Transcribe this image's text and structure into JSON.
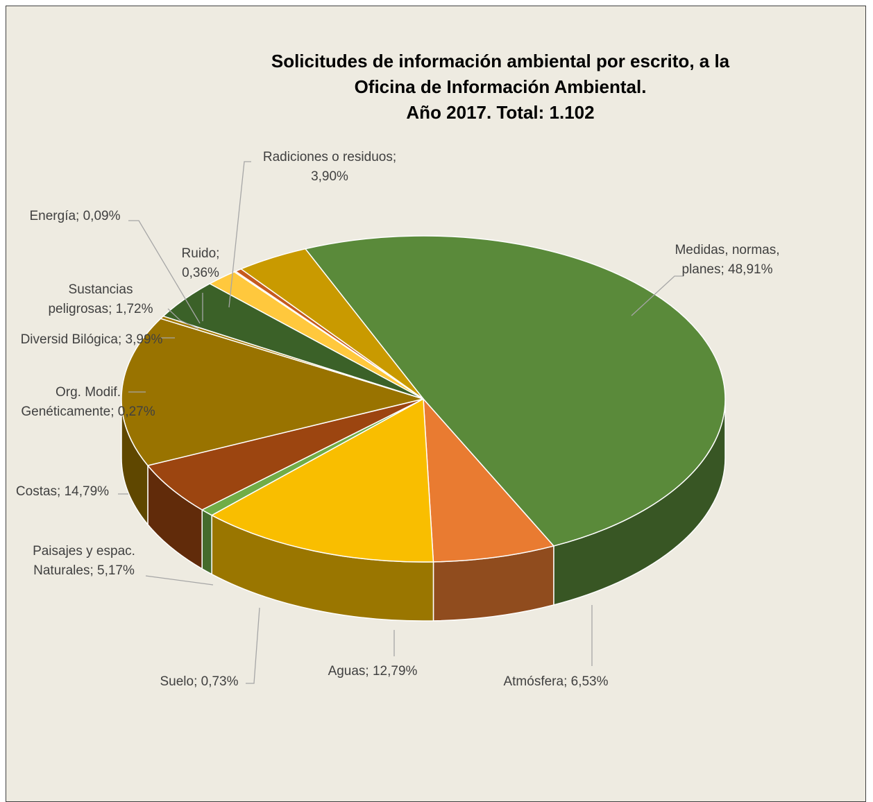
{
  "chart_data": {
    "type": "pie",
    "title_lines": [
      "Solicitudes de  información ambiental por escrito,  a la",
      "Oficina de Información Ambiental.",
      "Año 2017. Total: 1.102"
    ],
    "data_labels": "category; percent",
    "slices": [
      {
        "name": "Medidas, normas, planes",
        "value": 48.91,
        "label_lines": [
          "Medidas, normas,",
          "planes; 48,91%"
        ],
        "color": "#5a8a3a"
      },
      {
        "name": "Atmósfera",
        "value": 6.53,
        "label_lines": [
          "Atmósfera; 6,53%"
        ],
        "color": "#e97b31"
      },
      {
        "name": "Aguas",
        "value": 12.79,
        "label_lines": [
          "Aguas; 12,79%"
        ],
        "color": "#f9be00"
      },
      {
        "name": "Suelo",
        "value": 0.73,
        "label_lines": [
          "Suelo; 0,73%"
        ],
        "color": "#70ad47"
      },
      {
        "name": "Paisajes y espac. Naturales",
        "value": 5.17,
        "label_lines": [
          "Paisajes y espac.",
          "Naturales; 5,17%"
        ],
        "color": "#9c4510"
      },
      {
        "name": "Costas",
        "value": 14.79,
        "label_lines": [
          "Costas; 14,79%"
        ],
        "color": "#997300"
      },
      {
        "name": "Org. Modif. Genéticamente",
        "value": 0.27,
        "label_lines": [
          "Org. Modif.",
          "Genéticamente; 0,27%"
        ],
        "color": "#a27900"
      },
      {
        "name": "Diversid Bilógica",
        "value": 3.99,
        "label_lines": [
          "Diversid Bilógica; 3,99%"
        ],
        "color": "#3b6128"
      },
      {
        "name": "Sustancias peligrosas",
        "value": 1.72,
        "label_lines": [
          "Sustancias",
          "peligrosas; 1,72%"
        ],
        "color": "#ffc83d"
      },
      {
        "name": "Energía",
        "value": 0.09,
        "label_lines": [
          "Energía; 0,09%"
        ],
        "color": "#f4a261"
      },
      {
        "name": "Ruido",
        "value": 0.36,
        "label_lines": [
          "Ruido;",
          "0,36%"
        ],
        "color": "#c65a1e"
      },
      {
        "name": "Radiciones o residuos",
        "value": 3.9,
        "label_lines": [
          "Radiciones o residuos;",
          "3,90%"
        ],
        "color": "#c99a00"
      }
    ]
  }
}
